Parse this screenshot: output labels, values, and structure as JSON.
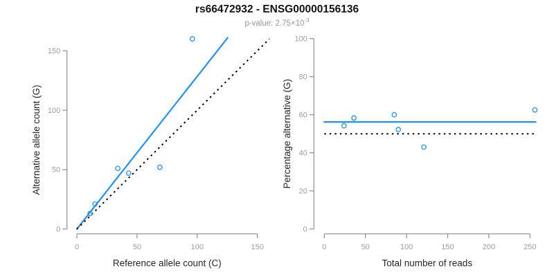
{
  "header": {
    "title": "rs66472932 - ENSG00000156136",
    "subtitle_prefix": "p-value: 2.75×10",
    "subtitle_exponent": "-3"
  },
  "colors": {
    "accent_blue": "#1E90FF",
    "axis_line_gray": "#8E8E8E",
    "tick_label_gray": "#9D9D9D",
    "axis_title_color": "#262626",
    "identity_black": "#000000",
    "title_color": "#141414",
    "subtitle_gray": "#989898",
    "background": "#FFFFFF"
  },
  "chart_data": [
    {
      "name": "allele-count-scatter",
      "type": "scatter",
      "xlabel": "Reference allele count (C)",
      "ylabel": "Alternative allele count (G)",
      "xticks": [
        0,
        50,
        100,
        150
      ],
      "yticks": [
        0,
        50,
        100,
        150
      ],
      "xlim": [
        0,
        160
      ],
      "ylim": [
        0,
        165
      ],
      "grid": false,
      "legend": "none",
      "points": [
        [
          11,
          13
        ],
        [
          15,
          21
        ],
        [
          34,
          51
        ],
        [
          43,
          47
        ],
        [
          69,
          52
        ],
        [
          96,
          160
        ]
      ],
      "lines": [
        {
          "name": "fit-line",
          "kind": "solid",
          "color_key": "accent_blue",
          "width": 2.2,
          "x1": 0,
          "y1": 0,
          "x2": 125.3,
          "y2": 160.9
        },
        {
          "name": "identity-line",
          "kind": "dotted",
          "color_key": "identity_black",
          "width": 2,
          "x1": 0,
          "y1": 0,
          "x2": 160,
          "y2": 160
        }
      ]
    },
    {
      "name": "percentage-scatter",
      "type": "scatter",
      "xlabel": "Total number of reads",
      "ylabel": "Percentage alternative (G)",
      "xticks": [
        0,
        50,
        100,
        150,
        200,
        250
      ],
      "yticks": [
        0,
        20,
        40,
        60,
        80,
        100
      ],
      "xlim": [
        0,
        257
      ],
      "ylim": [
        0,
        100
      ],
      "grid": false,
      "legend": "none",
      "points": [
        [
          24,
          54.2
        ],
        [
          36,
          58.3
        ],
        [
          85,
          60
        ],
        [
          90,
          52.2
        ],
        [
          121,
          43
        ],
        [
          256,
          62.5
        ]
      ],
      "lines": [
        {
          "name": "mean-line",
          "kind": "solid",
          "color_key": "accent_blue",
          "width": 2.2,
          "x1": 0,
          "y1": 56.2,
          "x2": 257,
          "y2": 56.2
        },
        {
          "name": "null-line",
          "kind": "dotted",
          "color_key": "identity_black",
          "width": 2,
          "x1": 0,
          "y1": 50,
          "x2": 257,
          "y2": 50
        }
      ]
    }
  ]
}
